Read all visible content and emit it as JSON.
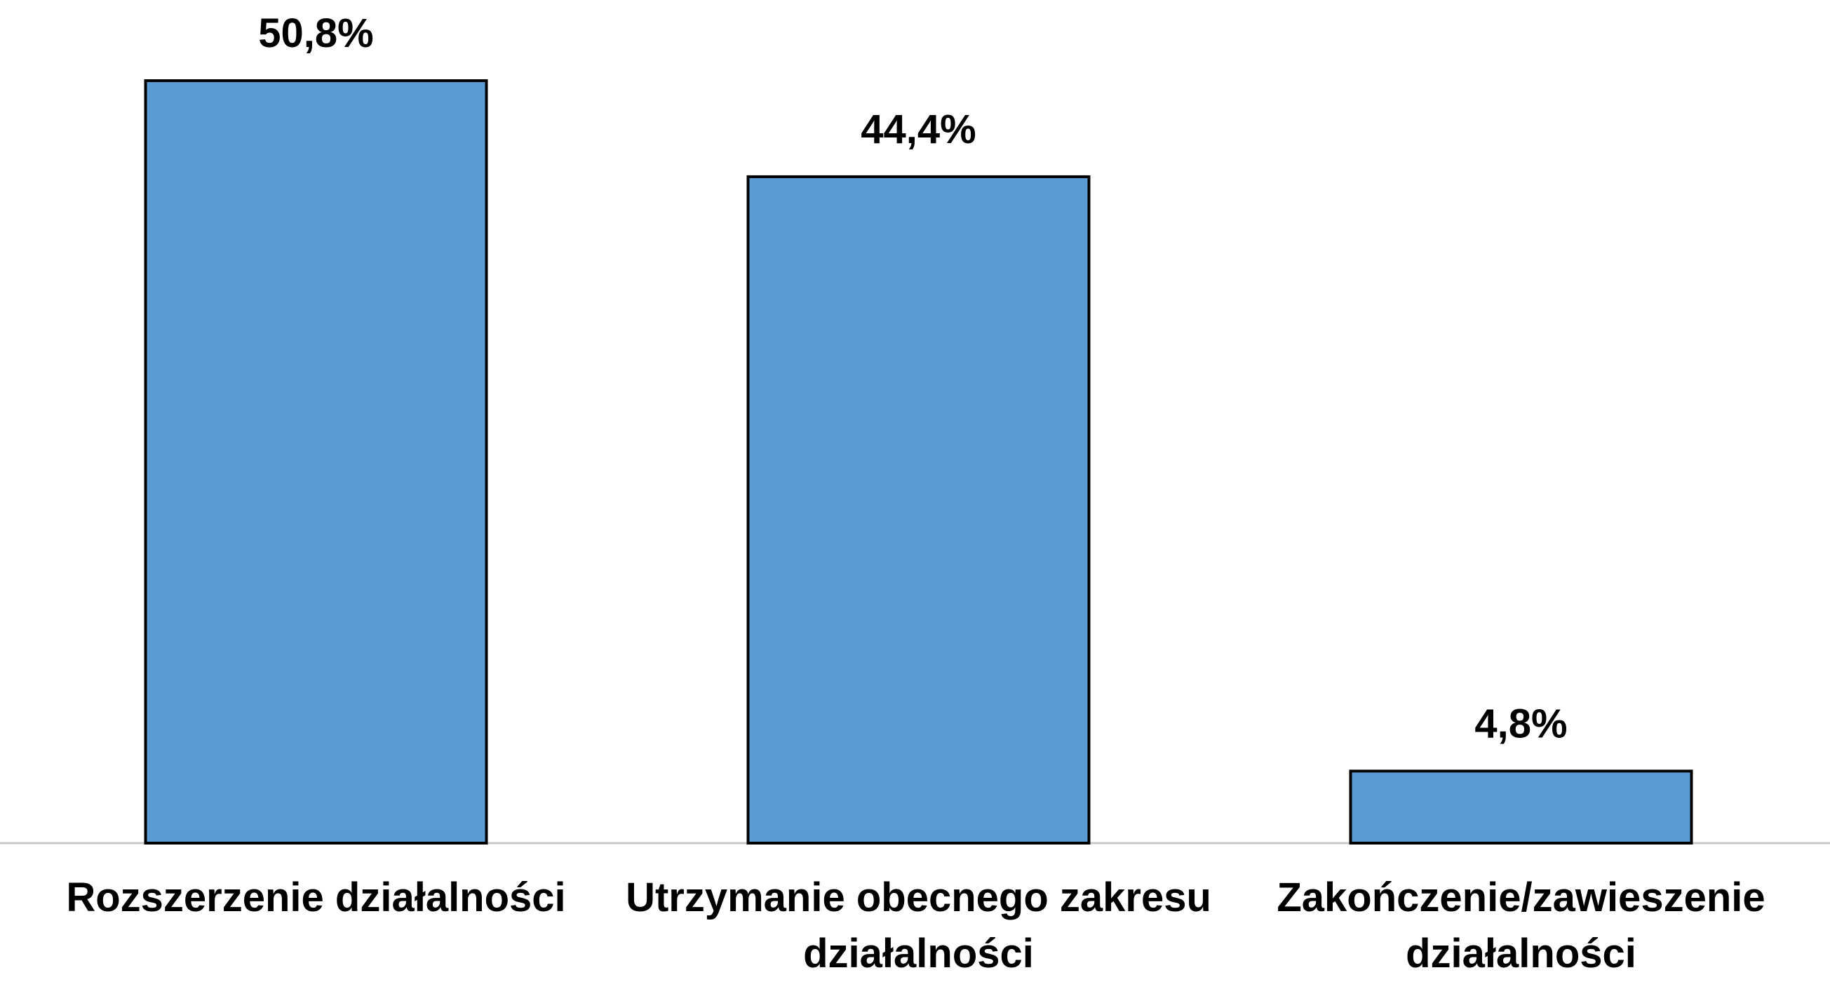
{
  "chart_data": {
    "type": "bar",
    "categories": [
      "Rozszerzenie działalności",
      "Utrzymanie obecnego zakresu działalności",
      "Zakończenie/zawieszenie działalności"
    ],
    "values": [
      50.8,
      44.4,
      4.8
    ],
    "value_labels": [
      "50,8%",
      "44,4%",
      "4,8%"
    ],
    "color": "#5b9bd5"
  }
}
